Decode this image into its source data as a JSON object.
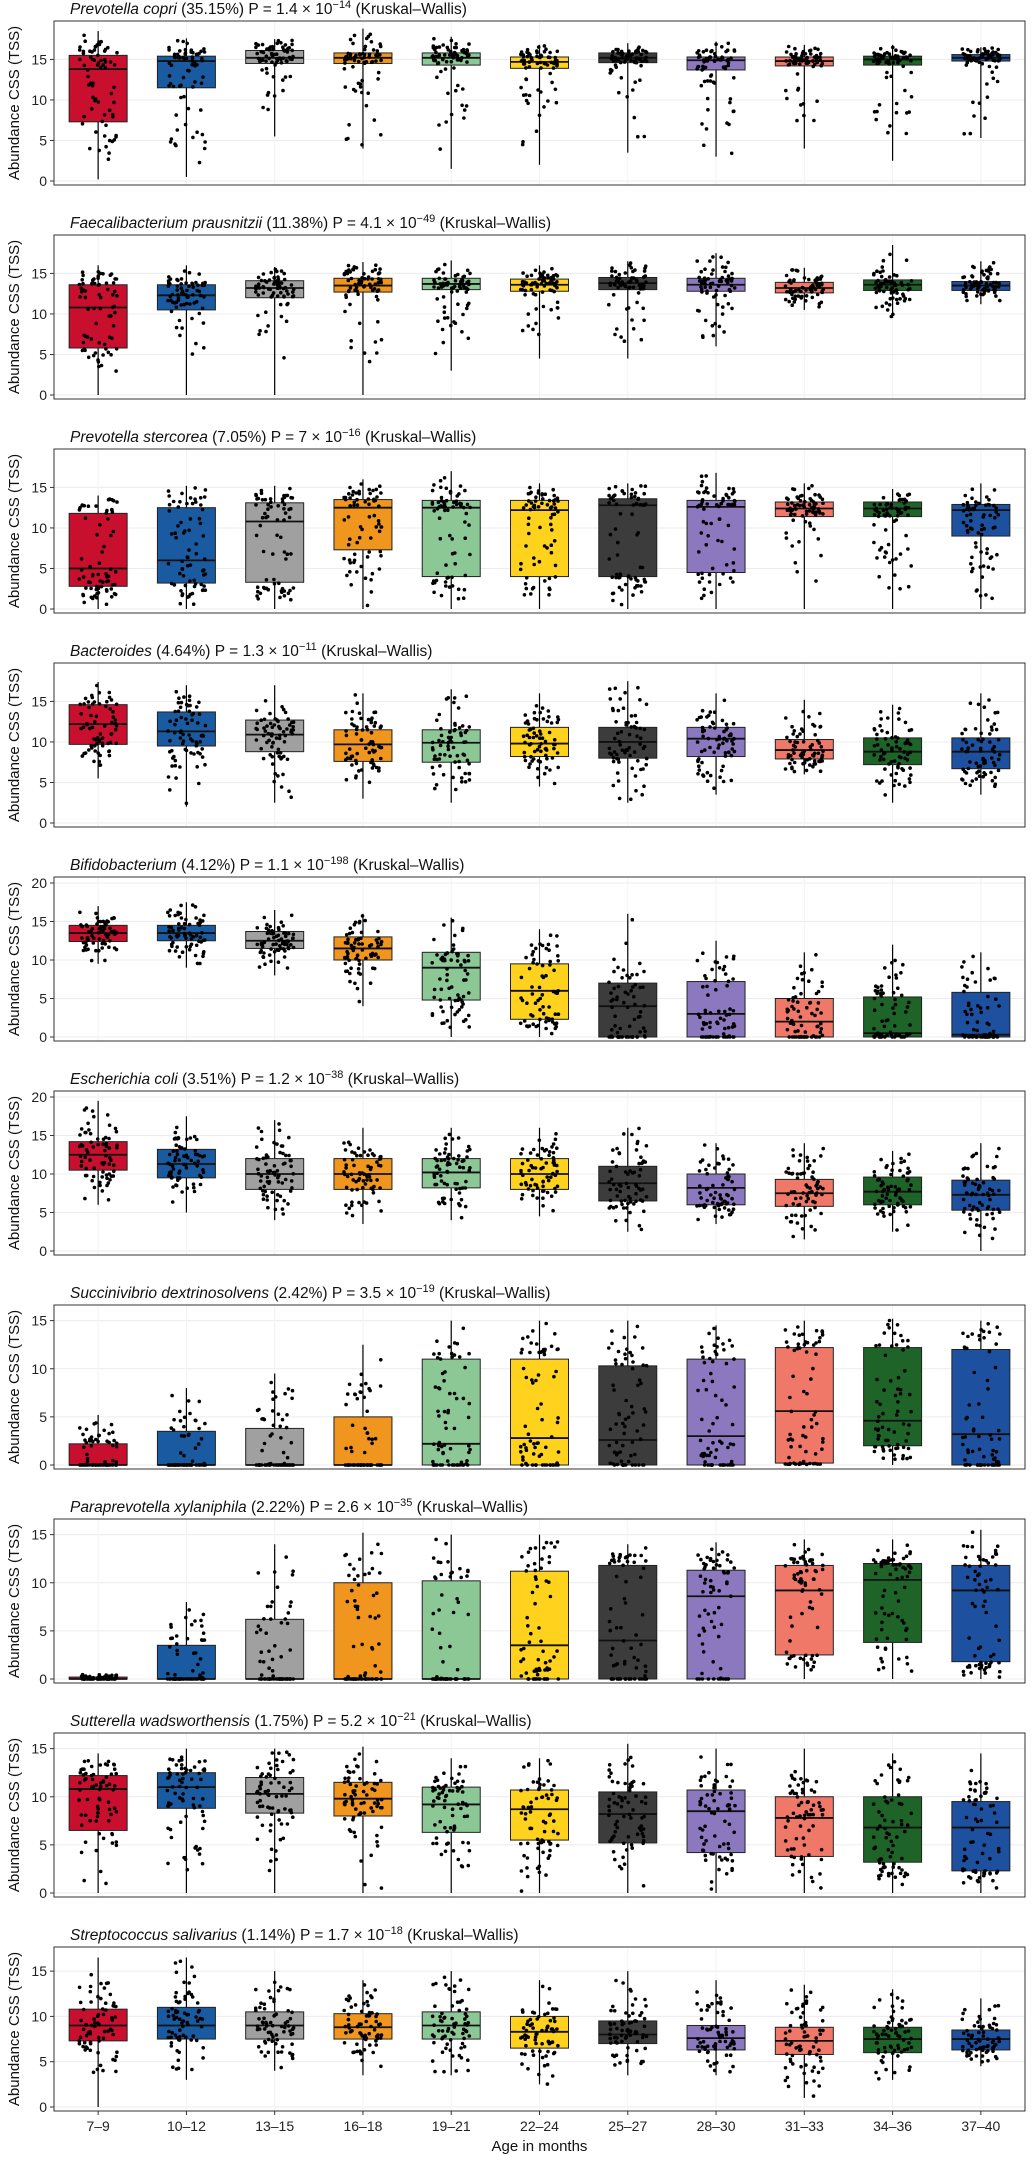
{
  "figure": {
    "xlabel": "Age in months",
    "ylabel": "Abundance CSS (TSS)",
    "categories": [
      "7–9",
      "10–12",
      "13–15",
      "16–18",
      "19–21",
      "22–24",
      "25–27",
      "28–30",
      "31–33",
      "34–36",
      "37–40"
    ],
    "group_colors": [
      "#c8102e",
      "#1a5aa0",
      "#a0a0a0",
      "#f0961e",
      "#8cc896",
      "#ffd21e",
      "#3c3c3c",
      "#8c78be",
      "#f07868",
      "#1e6428",
      "#1e50a0"
    ]
  },
  "chart_data": [
    {
      "type": "box",
      "species": "Prevotella copri",
      "rest": " (35.15%) P = 1.4 × 10",
      "exp": "−14",
      "test": " (Kruskal–Wallis)",
      "ylim": [
        0,
        19
      ],
      "yticks": [
        0,
        5,
        10,
        15
      ],
      "boxes": [
        [
          0.2,
          7.3,
          13.8,
          15.5,
          18.5
        ],
        [
          0.5,
          11.5,
          14.8,
          15.4,
          17.6
        ],
        [
          5.5,
          14.5,
          15.2,
          16.1,
          17.5
        ],
        [
          4,
          14.5,
          15.2,
          15.8,
          18.8
        ],
        [
          1.5,
          14.3,
          15.2,
          15.8,
          17.8
        ],
        [
          2,
          13.9,
          14.7,
          15.3,
          16.8
        ],
        [
          3.5,
          14.6,
          15.2,
          15.8,
          17
        ],
        [
          3,
          13.7,
          14.9,
          15.3,
          17.2
        ],
        [
          4,
          14.2,
          14.8,
          15.3,
          16.8
        ],
        [
          2.5,
          14.3,
          15,
          15.4,
          16.8
        ],
        [
          5.3,
          14.8,
          15.2,
          15.6,
          16.5
        ]
      ]
    },
    {
      "type": "box",
      "species": "Faecalibacterium prausnitzii",
      "rest": " (11.38%) P = 4.1 × 10",
      "exp": "−49",
      "test": " (Kruskal–Wallis)",
      "ylim": [
        0,
        19
      ],
      "yticks": [
        0,
        5,
        10,
        15
      ],
      "boxes": [
        [
          0,
          5.8,
          10.8,
          13.6,
          16
        ],
        [
          0,
          10.5,
          12.3,
          13.6,
          16
        ],
        [
          0,
          12,
          13.2,
          14.1,
          15.8
        ],
        [
          0,
          12.7,
          13.5,
          14.4,
          16.4
        ],
        [
          3,
          13,
          13.7,
          14.4,
          16.6
        ],
        [
          4.5,
          12.8,
          13.6,
          14.3,
          16
        ],
        [
          4.5,
          13,
          13.8,
          14.5,
          16.5
        ],
        [
          6,
          12.8,
          13.6,
          14.4,
          17.5
        ],
        [
          10.5,
          12.6,
          13.2,
          13.9,
          15.7
        ],
        [
          9.5,
          12.9,
          13.6,
          14.2,
          18.5
        ],
        [
          11.2,
          12.9,
          13.5,
          14,
          16.5
        ]
      ]
    },
    {
      "type": "box",
      "species": "Prevotella stercorea",
      "rest": " (7.05%) P = 7 × 10",
      "exp": "−16",
      "test": " (Kruskal–Wallis)",
      "ylim": [
        0,
        19
      ],
      "yticks": [
        0,
        5,
        10,
        15
      ],
      "boxes": [
        [
          0,
          2.8,
          5,
          11.8,
          14
        ],
        [
          0,
          3.2,
          6,
          12.5,
          15.2
        ],
        [
          0,
          3.3,
          10.8,
          13.1,
          15.2
        ],
        [
          0,
          7.3,
          12.5,
          13.5,
          16
        ],
        [
          0,
          4,
          12.5,
          13.4,
          17
        ],
        [
          0,
          4,
          12.2,
          13.4,
          15.5
        ],
        [
          0,
          4,
          12.8,
          13.6,
          15.5
        ],
        [
          0,
          4.5,
          12.6,
          13.4,
          16.8
        ],
        [
          0,
          11.4,
          12.4,
          13.2,
          15.5
        ],
        [
          0,
          11.4,
          12.4,
          13.2,
          14.8
        ],
        [
          0,
          9,
          12.2,
          12.9,
          15.5
        ]
      ]
    },
    {
      "type": "box",
      "species": "Bacteroides",
      "rest": " (4.64%) P = 1.3 × 10",
      "exp": "−11",
      "test": " (Kruskal–Wallis)",
      "ylim": [
        0,
        19
      ],
      "yticks": [
        0,
        5,
        10,
        15
      ],
      "boxes": [
        [
          5.5,
          9.7,
          12.2,
          14.6,
          17.4
        ],
        [
          2,
          9.5,
          11.3,
          13.7,
          17
        ],
        [
          2.5,
          8.8,
          10.9,
          12.7,
          17
        ],
        [
          3,
          7.6,
          9.7,
          11.5,
          16
        ],
        [
          2.5,
          7.5,
          9.9,
          11.5,
          16.5
        ],
        [
          4.5,
          8.2,
          9.8,
          11.8,
          16
        ],
        [
          2.5,
          8,
          10,
          11.8,
          17.5
        ],
        [
          3.5,
          8.2,
          10.4,
          11.8,
          16
        ],
        [
          6,
          7.9,
          9,
          10.3,
          15.2
        ],
        [
          2.5,
          7.2,
          8.8,
          10.5,
          14.6
        ],
        [
          3.5,
          6.7,
          8.8,
          10.5,
          16
        ]
      ]
    },
    {
      "type": "box",
      "species": "Bifidobacterium",
      "rest": " (4.12%) P = 1.1 × 10",
      "exp": "−198",
      "test": " (Kruskal–Wallis)",
      "ylim": [
        0,
        20
      ],
      "yticks": [
        0,
        5,
        10,
        15,
        20
      ],
      "boxes": [
        [
          9.5,
          12.4,
          13.5,
          14.5,
          17
        ],
        [
          9,
          12.5,
          13.5,
          14.5,
          17.5
        ],
        [
          8,
          11.5,
          12.5,
          13.7,
          16.5
        ],
        [
          4,
          10,
          11.5,
          13,
          16
        ],
        [
          0,
          4.8,
          9,
          11,
          15.5
        ],
        [
          0,
          2.3,
          6,
          9.5,
          14
        ],
        [
          0,
          0,
          4,
          7,
          16
        ],
        [
          0,
          0,
          3,
          7.2,
          12.5
        ],
        [
          0,
          0,
          2,
          5,
          11
        ],
        [
          0,
          0,
          0.5,
          5.2,
          12
        ],
        [
          0,
          0,
          0.3,
          5.8,
          11
        ]
      ]
    },
    {
      "type": "box",
      "species": "Escherichia coli",
      "rest": " (3.51%) P = 1.2 × 10",
      "exp": "−38",
      "test": " (Kruskal–Wallis)",
      "ylim": [
        0,
        20
      ],
      "yticks": [
        0,
        5,
        10,
        15,
        20
      ],
      "boxes": [
        [
          6,
          10.5,
          12.5,
          14.2,
          19.5
        ],
        [
          5,
          9.5,
          11.3,
          13.2,
          17.5
        ],
        [
          4,
          8,
          10,
          12,
          17
        ],
        [
          3.5,
          8,
          10,
          12,
          16
        ],
        [
          4,
          8.2,
          10.2,
          12,
          16
        ],
        [
          4.5,
          8,
          10,
          12,
          16
        ],
        [
          2.5,
          6.5,
          8.8,
          11,
          16
        ],
        [
          3.5,
          6,
          8.2,
          10,
          14
        ],
        [
          1.5,
          5.8,
          7.5,
          9.3,
          14
        ],
        [
          2.5,
          6,
          7.7,
          9.6,
          13
        ],
        [
          0,
          5.3,
          7.3,
          9.2,
          14
        ]
      ]
    },
    {
      "type": "box",
      "species": "Succinivibrio dextrinosolvens",
      "rest": " (2.42%) P = 3.5 × 10",
      "exp": "−19",
      "test": " (Kruskal–Wallis)",
      "ylim": [
        0,
        16
      ],
      "yticks": [
        0,
        5,
        10,
        15
      ],
      "boxes": [
        [
          0,
          0,
          0,
          2.2,
          5.2
        ],
        [
          0,
          0,
          0,
          3.5,
          8
        ],
        [
          0,
          0,
          0,
          3.8,
          9.5
        ],
        [
          0,
          0,
          0,
          5,
          12.5
        ],
        [
          0,
          0,
          2.2,
          11,
          15
        ],
        [
          0,
          0,
          2.8,
          11,
          15
        ],
        [
          0,
          0,
          2.6,
          10.3,
          15
        ],
        [
          0,
          0,
          3,
          11,
          14.5
        ],
        [
          0,
          0.2,
          5.6,
          12.2,
          15
        ],
        [
          0,
          2,
          4.6,
          12.2,
          15.2
        ],
        [
          0,
          0,
          3.2,
          12,
          15
        ]
      ]
    },
    {
      "type": "box",
      "species": "Paraprevotella xylaniphila",
      "rest": " (2.22%) P = 2.6 × 10",
      "exp": "−35",
      "test": " (Kruskal–Wallis)",
      "ylim": [
        0,
        16
      ],
      "yticks": [
        0,
        5,
        10,
        15
      ],
      "boxes": [
        [
          0,
          0,
          0,
          0.2,
          0.5
        ],
        [
          0,
          0,
          0,
          3.5,
          8
        ],
        [
          0,
          0,
          0,
          6.2,
          14
        ],
        [
          0,
          0,
          0,
          10,
          15.2
        ],
        [
          0,
          0,
          0,
          10.2,
          15
        ],
        [
          0,
          0,
          3.5,
          11.2,
          15
        ],
        [
          0,
          0,
          4,
          11.8,
          14
        ],
        [
          0,
          0,
          8.6,
          11.3,
          14.2
        ],
        [
          0,
          2.5,
          9.2,
          11.8,
          14.5
        ],
        [
          0,
          3.8,
          10.3,
          12,
          14.5
        ],
        [
          0,
          1.8,
          9.2,
          11.8,
          15.5
        ]
      ]
    },
    {
      "type": "box",
      "species": "Sutterella wadsworthensis",
      "rest": " (1.75%) P = 5.2 × 10",
      "exp": "−21",
      "test": " (Kruskal–Wallis)",
      "ylim": [
        0,
        16
      ],
      "yticks": [
        0,
        5,
        10,
        15
      ],
      "boxes": [
        [
          0,
          6.5,
          10.8,
          12.2,
          14.5
        ],
        [
          0,
          8.8,
          11,
          12.5,
          15
        ],
        [
          0,
          8.3,
          10.3,
          12,
          15
        ],
        [
          0,
          8,
          9.8,
          11.5,
          15.2
        ],
        [
          0,
          6.3,
          9.2,
          11,
          14
        ],
        [
          0,
          5.5,
          8.7,
          10.7,
          14
        ],
        [
          0,
          5.2,
          8.2,
          10.5,
          15.5
        ],
        [
          0,
          4.2,
          8.5,
          10.7,
          15
        ],
        [
          0,
          3.8,
          7.8,
          10,
          15
        ],
        [
          0,
          3.2,
          6.8,
          10,
          14.5
        ],
        [
          0,
          2.3,
          6.8,
          9.5,
          14.5
        ]
      ]
    },
    {
      "type": "box",
      "species": "Streptococcus salivarius",
      "rest": " (1.14%) P = 1.7 × 10",
      "exp": "−18",
      "test": " (Kruskal–Wallis)",
      "ylim": [
        0,
        17
      ],
      "yticks": [
        0,
        5,
        10,
        15
      ],
      "boxes": [
        [
          0,
          7.3,
          9,
          10.8,
          16.5
        ],
        [
          3,
          7.5,
          9,
          11,
          16.5
        ],
        [
          4,
          7.5,
          9,
          10.5,
          15
        ],
        [
          3.5,
          7.5,
          8.8,
          10.3,
          14
        ],
        [
          3.5,
          7.5,
          9,
          10.5,
          15
        ],
        [
          2.5,
          6.5,
          8.3,
          10,
          14
        ],
        [
          3.5,
          7,
          8,
          9.5,
          15
        ],
        [
          3.5,
          6.3,
          7.6,
          9,
          14
        ],
        [
          1,
          5.8,
          7.3,
          8.8,
          13.5
        ],
        [
          3,
          6,
          7.5,
          8.8,
          13
        ],
        [
          4.5,
          6.3,
          7.5,
          8.5,
          12
        ]
      ]
    }
  ]
}
